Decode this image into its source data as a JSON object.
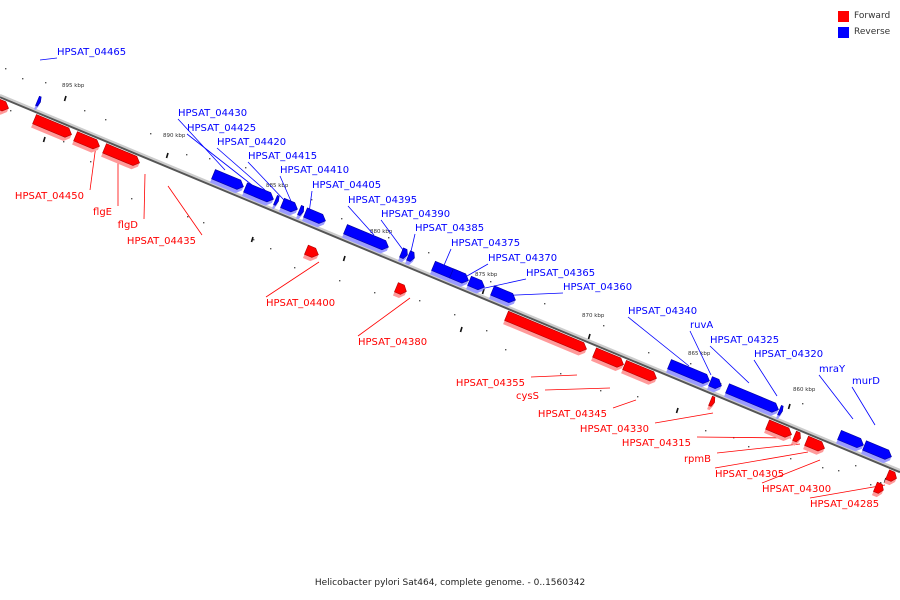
{
  "colors": {
    "forward": "#ff0000",
    "forward_dark": "#b00000",
    "forward_light": "#ff9a9a",
    "reverse": "#0000ff",
    "reverse_dark": "#0000a0",
    "reverse_light": "#9a9aff",
    "axis": "#999999"
  },
  "legend": [
    {
      "label": "Forward",
      "color": "#ff0000"
    },
    {
      "label": "Reverse",
      "color": "#0000ff"
    }
  ],
  "caption": "Helicobacter pylori Sat464, complete genome. - 0..1560342",
  "ticks": [
    "895 kbp",
    "890 kbp",
    "885 kbp",
    "880 kbp",
    "875 kbp",
    "870 kbp",
    "865 kbp",
    "860 kbp"
  ],
  "genes": [
    {
      "name": "HPSAT_04465",
      "strand": "reverse"
    },
    {
      "name": "HPSAT_04450",
      "strand": "forward"
    },
    {
      "name": "flgE",
      "strand": "forward"
    },
    {
      "name": "flgD",
      "strand": "forward"
    },
    {
      "name": "HPSAT_04435",
      "strand": "forward"
    },
    {
      "name": "HPSAT_04430",
      "strand": "reverse"
    },
    {
      "name": "HPSAT_04425",
      "strand": "reverse"
    },
    {
      "name": "HPSAT_04420",
      "strand": "reverse"
    },
    {
      "name": "HPSAT_04415",
      "strand": "reverse"
    },
    {
      "name": "HPSAT_04410",
      "strand": "reverse"
    },
    {
      "name": "HPSAT_04405",
      "strand": "reverse"
    },
    {
      "name": "HPSAT_04400",
      "strand": "forward"
    },
    {
      "name": "HPSAT_04395",
      "strand": "reverse"
    },
    {
      "name": "HPSAT_04390",
      "strand": "reverse"
    },
    {
      "name": "HPSAT_04385",
      "strand": "reverse"
    },
    {
      "name": "HPSAT_04380",
      "strand": "forward"
    },
    {
      "name": "HPSAT_04375",
      "strand": "reverse"
    },
    {
      "name": "HPSAT_04370",
      "strand": "reverse"
    },
    {
      "name": "HPSAT_04365",
      "strand": "reverse"
    },
    {
      "name": "HPSAT_04360",
      "strand": "reverse"
    },
    {
      "name": "HPSAT_04355",
      "strand": "forward"
    },
    {
      "name": "cysS",
      "strand": "forward"
    },
    {
      "name": "HPSAT_04345",
      "strand": "forward"
    },
    {
      "name": "HPSAT_04340",
      "strand": "reverse"
    },
    {
      "name": "ruvA",
      "strand": "reverse"
    },
    {
      "name": "HPSAT_04330",
      "strand": "forward"
    },
    {
      "name": "HPSAT_04325",
      "strand": "reverse"
    },
    {
      "name": "HPSAT_04320",
      "strand": "reverse"
    },
    {
      "name": "HPSAT_04315",
      "strand": "forward"
    },
    {
      "name": "rpmB",
      "strand": "forward"
    },
    {
      "name": "HPSAT_04305",
      "strand": "forward"
    },
    {
      "name": "mraY",
      "strand": "reverse"
    },
    {
      "name": "murD",
      "strand": "reverse"
    },
    {
      "name": "HPSAT_04300",
      "strand": "forward"
    },
    {
      "name": "HPSAT_04285",
      "strand": "forward"
    }
  ]
}
